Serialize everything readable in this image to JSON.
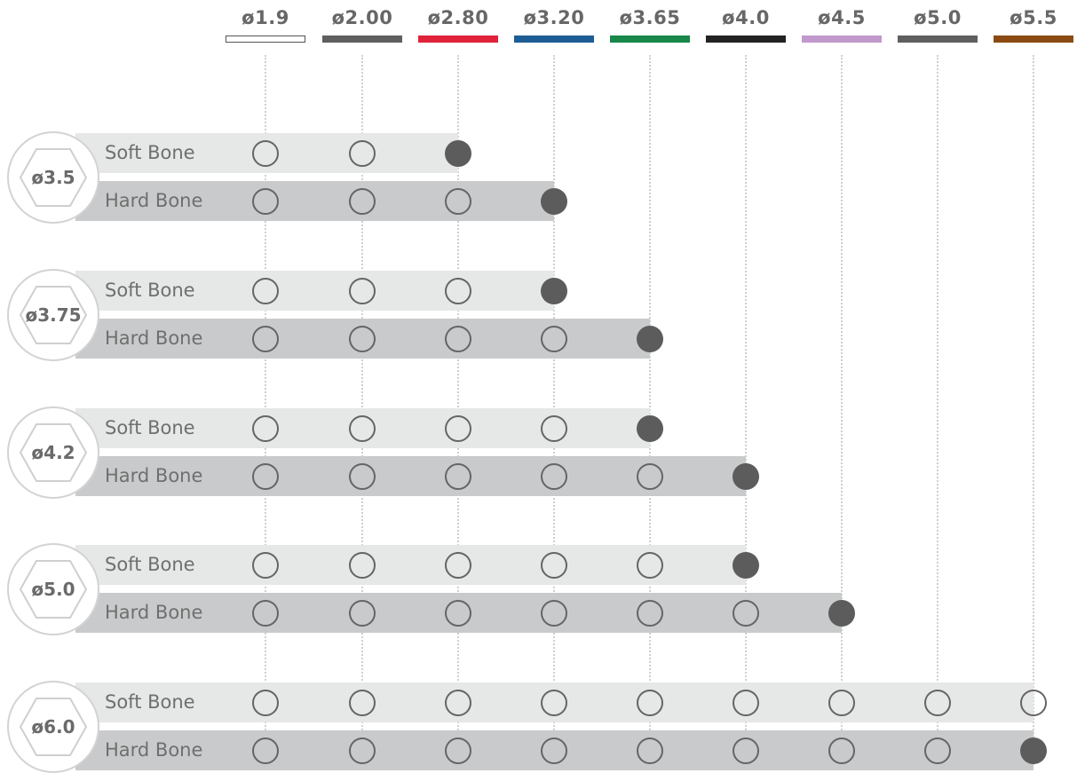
{
  "drills": [
    {
      "label": "ø1.9",
      "color": "#ffffff",
      "outlined": true
    },
    {
      "label": "ø2.00",
      "color": "#5f5f5f"
    },
    {
      "label": "ø2.80",
      "color": "#e0223b"
    },
    {
      "label": "ø3.20",
      "color": "#1d5d95"
    },
    {
      "label": "ø3.65",
      "color": "#17874a"
    },
    {
      "label": "ø4.0",
      "color": "#232323"
    },
    {
      "label": "ø4.5",
      "color": "#c199cd"
    },
    {
      "label": "ø5.0",
      "color": "#5f5f5f"
    },
    {
      "label": "ø5.5",
      "color": "#8b4a12"
    }
  ],
  "implants": [
    {
      "label": "ø3.5",
      "rows": [
        {
          "bone": "Soft Bone",
          "open_count": 2,
          "final_filled": true
        },
        {
          "bone": "Hard Bone",
          "open_count": 3,
          "final_filled": true
        }
      ]
    },
    {
      "label": "ø3.75",
      "rows": [
        {
          "bone": "Soft Bone",
          "open_count": 3,
          "final_filled": true
        },
        {
          "bone": "Hard Bone",
          "open_count": 4,
          "final_filled": true
        }
      ]
    },
    {
      "label": "ø4.2",
      "rows": [
        {
          "bone": "Soft Bone",
          "open_count": 4,
          "final_filled": true
        },
        {
          "bone": "Hard Bone",
          "open_count": 5,
          "final_filled": true
        }
      ]
    },
    {
      "label": "ø5.0",
      "rows": [
        {
          "bone": "Soft Bone",
          "open_count": 5,
          "final_filled": true
        },
        {
          "bone": "Hard Bone",
          "open_count": 6,
          "final_filled": true
        }
      ]
    },
    {
      "label": "ø6.0",
      "rows": [
        {
          "bone": "Soft Bone",
          "open_count": 8,
          "final_filled": false
        },
        {
          "bone": "Hard Bone",
          "open_count": 8,
          "final_filled": true
        }
      ]
    }
  ],
  "colors": {
    "soft_band": "#e6e7e7",
    "hard_band": "#c9cacb",
    "marker_fill": "#5c5c5c",
    "marker_outline": "#656565",
    "guide_line": "#cfcfcf"
  }
}
